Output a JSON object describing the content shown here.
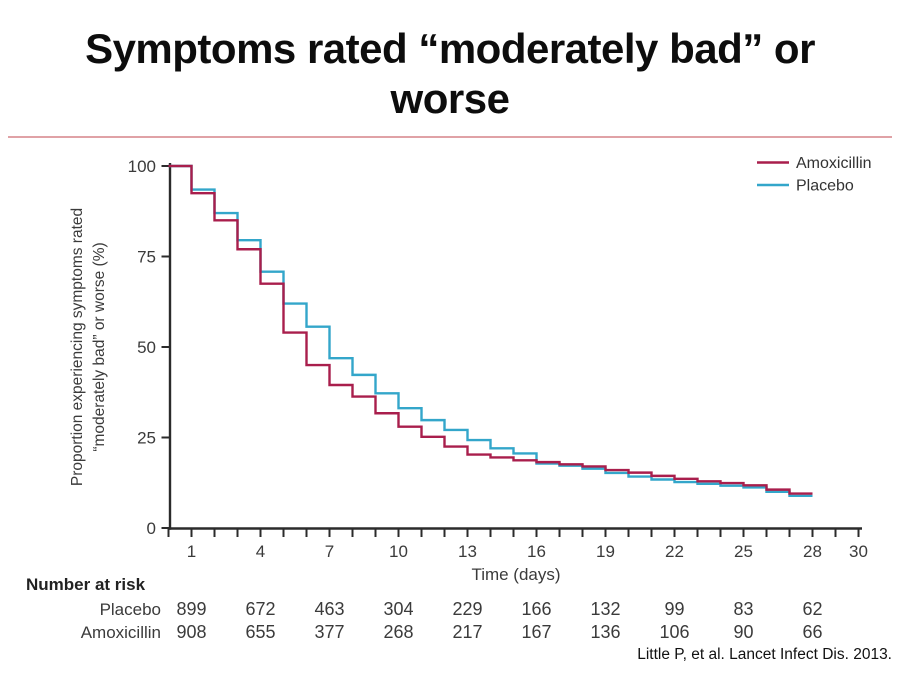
{
  "title": {
    "line1": "Symptoms rated “moderately bad” or",
    "line2": "worse"
  },
  "citation": "Little P, et al. Lancet Infect Dis. 2013.",
  "chart_data": {
    "type": "line",
    "subtype": "kaplan-meier-step",
    "xlabel": "Time (days)",
    "ylabel_line1": "Proportion experiencing symptoms rated",
    "ylabel_line2": "“moderately bad” or worse (%)",
    "xlim": [
      0,
      30
    ],
    "ylim": [
      0,
      100
    ],
    "x_tick_labels": [
      1,
      4,
      7,
      10,
      13,
      16,
      19,
      22,
      25,
      28,
      30
    ],
    "x_tick_step": 1,
    "y_ticks": [
      0,
      25,
      50,
      75,
      100
    ],
    "x_end": 28,
    "grid": false,
    "legend_position": "top-right",
    "series": [
      {
        "name": "Amoxicillin",
        "color": "#a91e4c",
        "days": [
          0,
          1,
          2,
          3,
          4,
          5,
          6,
          7,
          8,
          9,
          10,
          11,
          12,
          13,
          14,
          15,
          16,
          17,
          18,
          19,
          20,
          21,
          22,
          23,
          24,
          25,
          26,
          27
        ],
        "values": [
          100,
          92.5,
          85,
          77,
          67.5,
          54,
          45,
          39.5,
          36.3,
          31.7,
          28,
          25.2,
          22.5,
          20.3,
          19.5,
          18.7,
          18.2,
          17.6,
          17.0,
          16.0,
          15.3,
          14.4,
          13.6,
          12.9,
          12.4,
          11.8,
          10.6,
          9.5
        ]
      },
      {
        "name": "Placebo",
        "color": "#33a6ca",
        "days": [
          0,
          1,
          2,
          3,
          4,
          5,
          6,
          7,
          8,
          9,
          10,
          11,
          12,
          13,
          14,
          15,
          16,
          17,
          18,
          19,
          20,
          21,
          22,
          23,
          24,
          25,
          26,
          27
        ],
        "values": [
          100,
          93.5,
          87,
          79.5,
          70.8,
          62,
          55.6,
          46.9,
          42.3,
          37.2,
          33.1,
          29.8,
          27.1,
          24.3,
          22.0,
          20.6,
          17.8,
          17.2,
          16.4,
          15.2,
          14.2,
          13.4,
          12.7,
          12.2,
          11.7,
          11.2,
          10.0,
          8.9
        ]
      }
    ]
  },
  "risk_table": {
    "header": "Number at risk",
    "days": [
      1,
      4,
      7,
      10,
      13,
      16,
      19,
      22,
      25,
      28
    ],
    "rows": [
      {
        "label": "Placebo",
        "values": [
          899,
          672,
          463,
          304,
          229,
          166,
          132,
          99,
          83,
          62
        ]
      },
      {
        "label": "Amoxicillin",
        "values": [
          908,
          655,
          377,
          268,
          217,
          167,
          136,
          106,
          90,
          66
        ]
      }
    ]
  }
}
